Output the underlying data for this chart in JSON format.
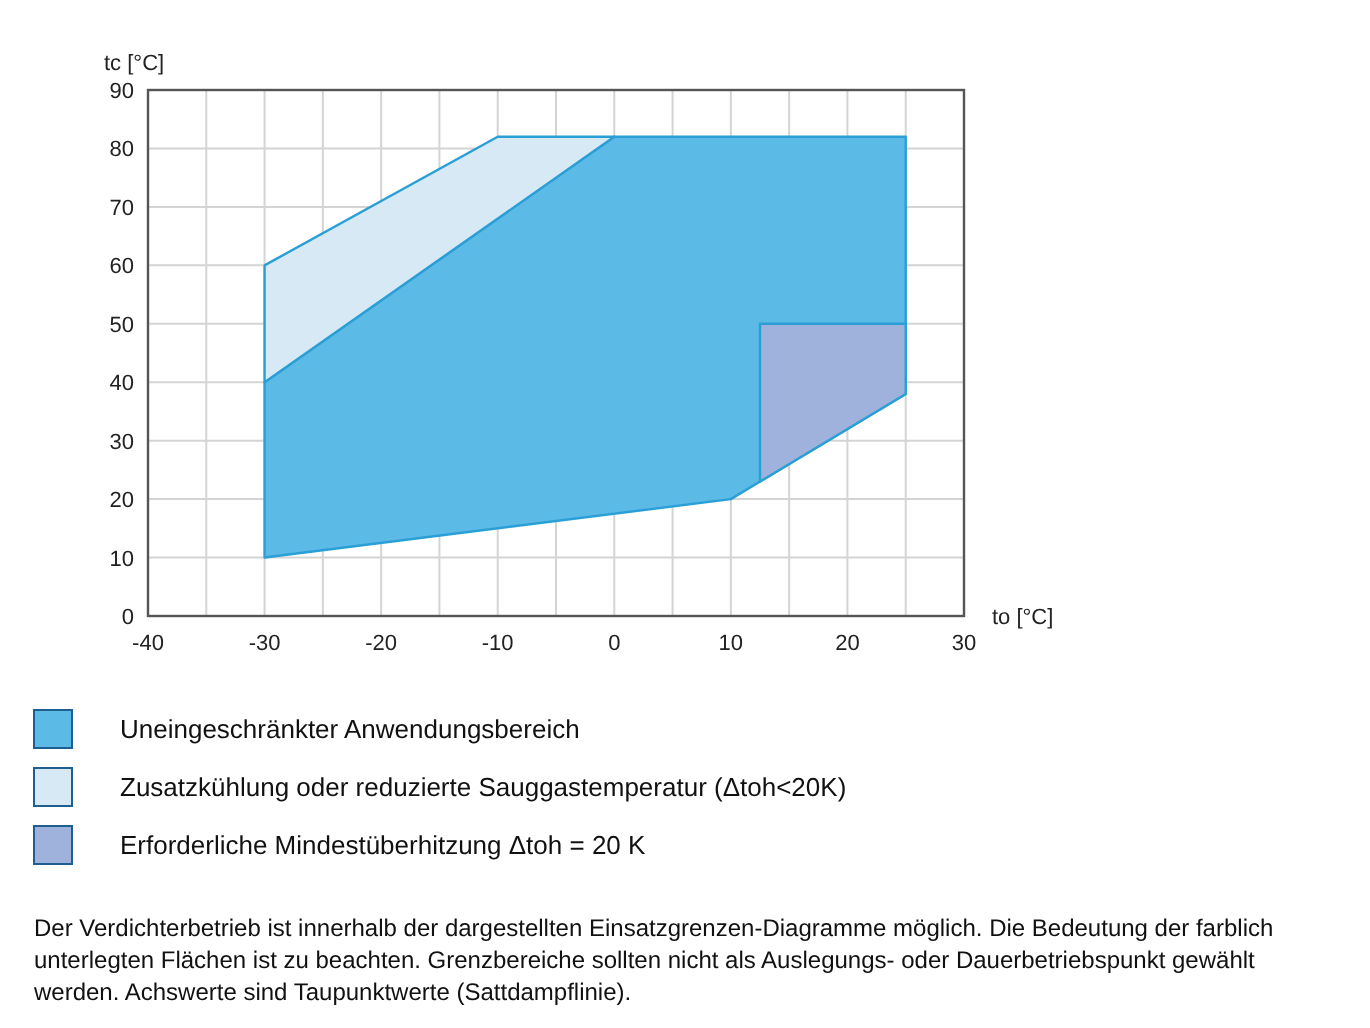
{
  "chart_data": {
    "type": "area",
    "xlabel": "to [°C]",
    "ylabel": "tc [°C]",
    "xlim": [
      -40,
      30
    ],
    "ylim": [
      0,
      90
    ],
    "xticks": [
      -40,
      {
        "value": -35,
        "label": null
      },
      -30,
      {
        "value": -25,
        "label": null
      },
      -20,
      {
        "value": -15,
        "label": null
      },
      -10,
      {
        "value": -5,
        "label": null
      },
      0,
      {
        "value": 5,
        "label": null
      },
      10,
      {
        "value": 15,
        "label": null
      },
      20,
      {
        "value": 25,
        "label": null
      },
      30
    ],
    "yticks": [
      0,
      10,
      20,
      30,
      40,
      50,
      60,
      70,
      80,
      90
    ],
    "grid": true,
    "legend": "bottom",
    "series": [
      {
        "name": "Uneingeschränkter Anwendungsbereich",
        "color": "#5bbae6",
        "x": [
          -30,
          10,
          25,
          25,
          0,
          -30
        ],
        "values": [
          10,
          20,
          38,
          82,
          82,
          40
        ]
      },
      {
        "name": "Zusatzkühlung oder reduzierte Sauggastemperatur (Δtoh<20K)",
        "color": "#d6e9f5",
        "x": [
          -30,
          -30,
          -10,
          0
        ],
        "values": [
          40,
          60,
          82,
          82
        ]
      },
      {
        "name": "Erforderliche Mindestüberhitzung Δtoh = 20 K",
        "color": "#9fb2dc",
        "x": [
          12.5,
          25,
          25,
          12.5
        ],
        "values": [
          50,
          50,
          38,
          23
        ]
      }
    ],
    "annotations": [
      "Der Verdichterbetrieb ist innerhalb der dargestellten Einsatzgrenzen-Diagramme möglich. Die Bedeutung der farblich unterlegten Flächen ist zu beachten. Grenzbereiche sollten nicht als Auslegungs- oder Dauerbetriebspunkt gewählt werden. Achswerte sind Taupunktwerte (Sattdampflinie)."
    ]
  }
}
